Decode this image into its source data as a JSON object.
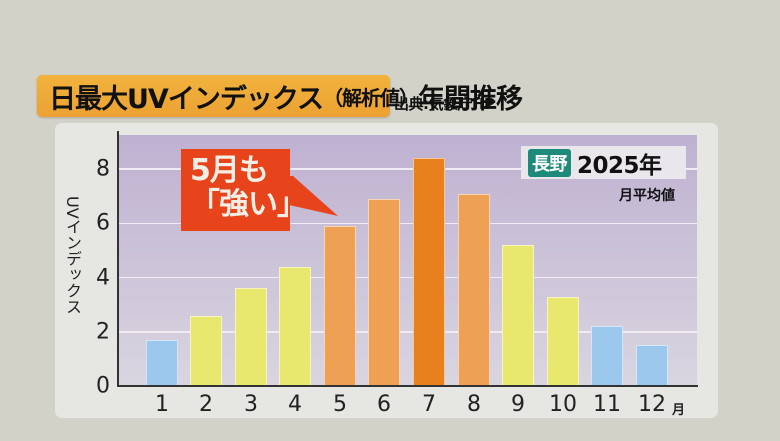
{
  "header": {
    "title_main": "日最大UVインデックス",
    "title_paren": "（解析値）",
    "title_tail": "年間推移",
    "source": "出典:気象庁HP"
  },
  "legend": {
    "location": "長野",
    "year": "2025年",
    "note": "月平均値"
  },
  "callout": {
    "line1": "5月も",
    "line2": "「強い」"
  },
  "colors": {
    "low": "#9cc8ee",
    "moderate": "#e8e86e",
    "high": "#eea054",
    "very_high": "#e7801d",
    "callout": "#e7441c",
    "banner": "#f0ad38",
    "location_badge": "#1e8a7a"
  },
  "chart_data": {
    "type": "bar",
    "title": "日最大UVインデックス（解析値）年間推移",
    "subtitle": "長野 2025年 月平均値",
    "source": "出典:気象庁HP",
    "xlabel": "月",
    "ylabel": "UVインデックス",
    "categories": [
      "1",
      "2",
      "3",
      "4",
      "5",
      "6",
      "7",
      "8",
      "9",
      "10",
      "11",
      "12"
    ],
    "values": [
      1.7,
      2.6,
      3.6,
      4.4,
      5.9,
      6.9,
      8.4,
      7.1,
      5.2,
      3.3,
      2.2,
      1.5
    ],
    "bar_colors": [
      "#9cc8ee",
      "#e8e86e",
      "#e8e86e",
      "#e8e86e",
      "#eea054",
      "#eea054",
      "#e7801d",
      "#eea054",
      "#e8e86e",
      "#e8e86e",
      "#9cc8ee",
      "#9cc8ee"
    ],
    "yticks": [
      "0",
      "2",
      "4",
      "6",
      "8"
    ],
    "ylim": [
      0,
      9.2
    ],
    "grid": true,
    "annotations": [
      "5月も「強い」"
    ]
  }
}
